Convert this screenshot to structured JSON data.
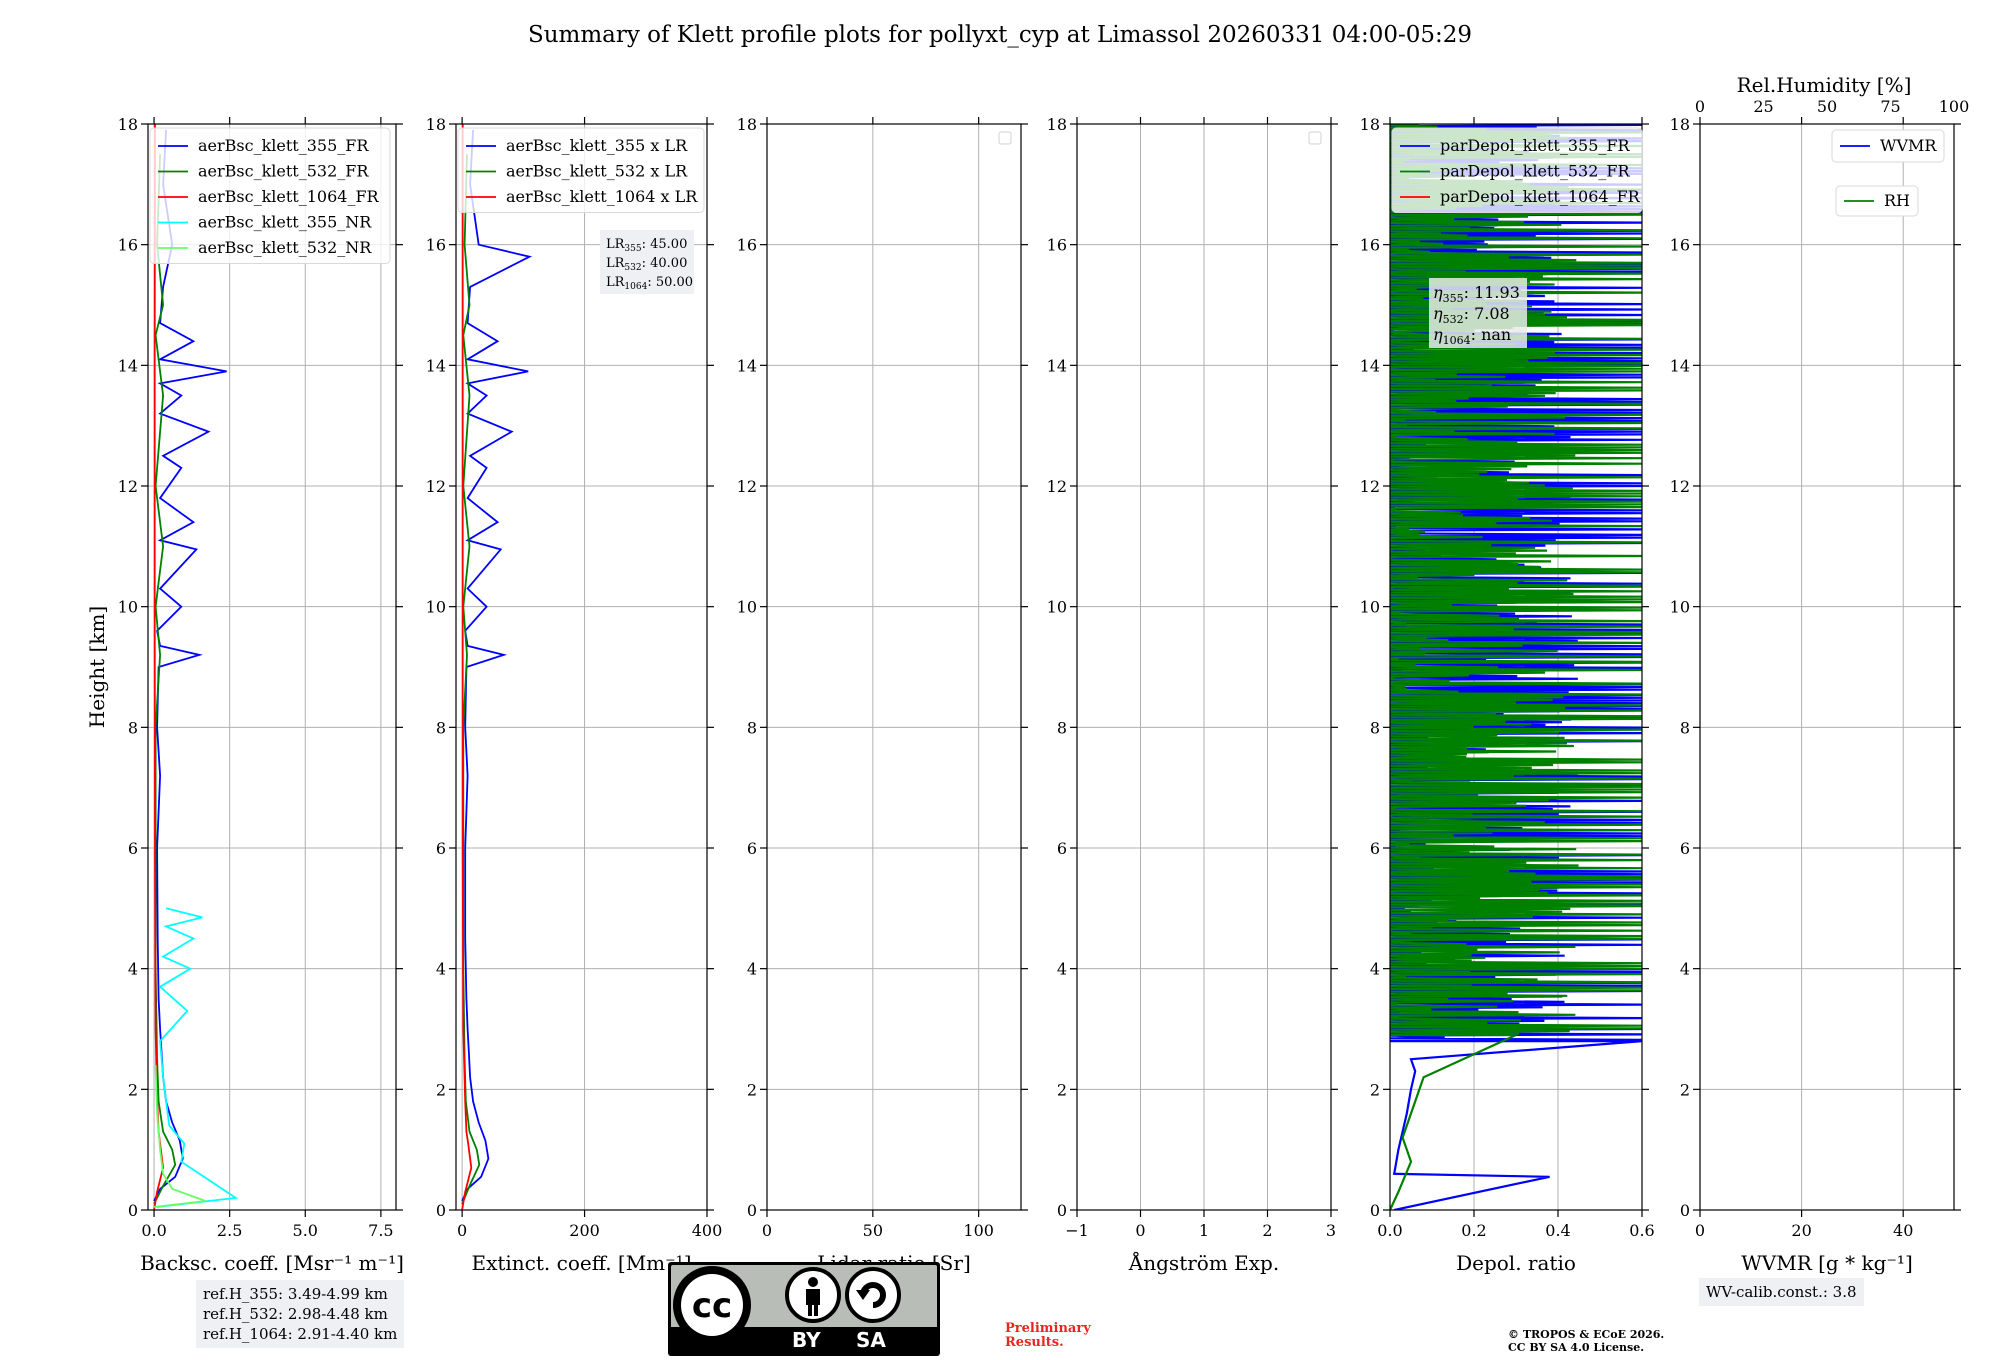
{
  "title": "Summary of Klett profile plots for pollyxt_cyp at Limassol 20260331 04:00-05:29",
  "chart_data": [
    {
      "type": "line",
      "panel": "backscatter",
      "xlabel": "Backsc. coeff. [Msr⁻¹ m⁻¹]",
      "ylabel": "Height [km]",
      "xlim": [
        -0.2,
        8.0
      ],
      "ylim": [
        0,
        18
      ],
      "xticks": [
        "0.0",
        "2.5",
        "5.0",
        "7.5"
      ],
      "xtick_values": [
        0,
        2.5,
        5,
        7.5
      ],
      "yticks": [
        "0",
        "2",
        "4",
        "6",
        "8",
        "10",
        "12",
        "14",
        "16",
        "18"
      ],
      "grid": true,
      "legend_position": "top-left",
      "series": [
        {
          "name": "aerBsc_klett_355_FR",
          "color": "#0000ff",
          "values": [
            [
              0.0,
              0.15
            ],
            [
              0.2,
              0.35
            ],
            [
              0.7,
              0.55
            ],
            [
              0.95,
              0.85
            ],
            [
              0.85,
              1.15
            ],
            [
              0.6,
              1.45
            ],
            [
              0.4,
              1.8
            ],
            [
              0.3,
              2.2
            ],
            [
              0.25,
              2.6
            ],
            [
              0.2,
              3.0
            ],
            [
              0.15,
              3.5
            ],
            [
              0.12,
              4.5
            ],
            [
              0.1,
              6
            ],
            [
              0.2,
              7.2
            ],
            [
              0.1,
              8
            ],
            [
              0.15,
              9.0
            ],
            [
              1.5,
              9.2
            ],
            [
              0.2,
              9.35
            ],
            [
              0.1,
              9.6
            ],
            [
              0.9,
              10.0
            ],
            [
              0.2,
              10.3
            ],
            [
              1.4,
              10.95
            ],
            [
              0.2,
              11.1
            ],
            [
              1.3,
              11.4
            ],
            [
              0.2,
              11.8
            ],
            [
              0.9,
              12.3
            ],
            [
              0.3,
              12.5
            ],
            [
              1.8,
              12.9
            ],
            [
              0.2,
              13.2
            ],
            [
              0.9,
              13.5
            ],
            [
              0.2,
              13.7
            ],
            [
              2.4,
              13.9
            ],
            [
              0.2,
              14.1
            ],
            [
              1.3,
              14.4
            ],
            [
              0.2,
              14.7
            ],
            [
              0.3,
              15.3
            ],
            [
              0.6,
              16.0
            ],
            [
              0.3,
              17
            ],
            [
              0.4,
              17.9
            ]
          ]
        },
        {
          "name": "aerBsc_klett_532_FR",
          "color": "#008000",
          "values": [
            [
              0.0,
              0.1
            ],
            [
              0.3,
              0.4
            ],
            [
              0.7,
              0.75
            ],
            [
              0.6,
              1.0
            ],
            [
              0.3,
              1.3
            ],
            [
              0.15,
              1.8
            ],
            [
              0.1,
              2.5
            ],
            [
              0.05,
              4
            ],
            [
              0.05,
              6
            ],
            [
              0.05,
              8
            ],
            [
              0.2,
              9.2
            ],
            [
              0.05,
              10
            ],
            [
              0.3,
              11
            ],
            [
              0.05,
              12
            ],
            [
              0.3,
              13.5
            ],
            [
              0.05,
              14.5
            ],
            [
              0.3,
              15.0
            ],
            [
              0.1,
              16
            ],
            [
              0.2,
              17.5
            ]
          ]
        },
        {
          "name": "aerBsc_klett_1064_FR",
          "color": "#ff0000",
          "values": [
            [
              0.0,
              0.0
            ],
            [
              0.1,
              0.3
            ],
            [
              0.3,
              0.7
            ],
            [
              0.2,
              1.1
            ],
            [
              0.15,
              1.3
            ],
            [
              0.1,
              1.8
            ],
            [
              0.05,
              3
            ],
            [
              0.03,
              6
            ],
            [
              0.02,
              10
            ],
            [
              0.02,
              14
            ],
            [
              0.03,
              18
            ]
          ]
        },
        {
          "name": "aerBsc_klett_355_NR",
          "color": "#00ffff",
          "values": [
            [
              0.1,
              0.05
            ],
            [
              2.7,
              0.2
            ],
            [
              1.8,
              0.5
            ],
            [
              0.9,
              0.8
            ],
            [
              1.0,
              1.1
            ],
            [
              0.5,
              1.4
            ],
            [
              0.4,
              1.8
            ],
            [
              0.3,
              2.2
            ],
            [
              0.2,
              2.8
            ],
            [
              1.1,
              3.3
            ],
            [
              0.2,
              3.7
            ],
            [
              1.2,
              4.0
            ],
            [
              0.3,
              4.2
            ],
            [
              1.3,
              4.5
            ],
            [
              0.4,
              4.7
            ],
            [
              1.6,
              4.85
            ],
            [
              0.4,
              5.0
            ]
          ]
        },
        {
          "name": "aerBsc_klett_532_NR",
          "color": "#66ff66",
          "values": [
            [
              0.0,
              0.05
            ],
            [
              1.7,
              0.15
            ],
            [
              0.6,
              0.35
            ],
            [
              0.3,
              0.6
            ],
            [
              0.2,
              1.0
            ],
            [
              0.1,
              1.6
            ],
            [
              0.05,
              2.4
            ]
          ]
        }
      ]
    },
    {
      "type": "line",
      "panel": "extinction",
      "xlabel": "Extinct. coeff. [Mm⁻¹]",
      "xlim": [
        -10,
        400
      ],
      "ylim": [
        0,
        18
      ],
      "xticks": [
        "0",
        "200",
        "400"
      ],
      "xtick_values": [
        0,
        200,
        400
      ],
      "yticks": [
        "0",
        "2",
        "4",
        "6",
        "8",
        "10",
        "12",
        "14",
        "16",
        "18"
      ],
      "grid": true,
      "legend_position": "top-left",
      "lidar_ratios": [
        "LR355: 45.00",
        "LR532: 40.00",
        "LR1064: 50.00"
      ],
      "series": [
        {
          "name": "aerBsc_klett_355 x LR",
          "color": "#0000ff",
          "values": [
            [
              0,
              0.15
            ],
            [
              9,
              0.35
            ],
            [
              31,
              0.55
            ],
            [
              43,
              0.85
            ],
            [
              38,
              1.15
            ],
            [
              27,
              1.45
            ],
            [
              18,
              1.8
            ],
            [
              13,
              2.2
            ],
            [
              11,
              2.6
            ],
            [
              9,
              3.0
            ],
            [
              7,
              3.5
            ],
            [
              5,
              4.5
            ],
            [
              5,
              6
            ],
            [
              9,
              7.2
            ],
            [
              5,
              8
            ],
            [
              7,
              9.0
            ],
            [
              68,
              9.2
            ],
            [
              9,
              9.35
            ],
            [
              5,
              9.6
            ],
            [
              40,
              10.0
            ],
            [
              9,
              10.3
            ],
            [
              63,
              10.95
            ],
            [
              9,
              11.1
            ],
            [
              58,
              11.4
            ],
            [
              9,
              11.8
            ],
            [
              40,
              12.3
            ],
            [
              13,
              12.5
            ],
            [
              81,
              12.9
            ],
            [
              9,
              13.2
            ],
            [
              40,
              13.5
            ],
            [
              9,
              13.7
            ],
            [
              108,
              13.9
            ],
            [
              9,
              14.1
            ],
            [
              58,
              14.4
            ],
            [
              9,
              14.7
            ],
            [
              13,
              15.3
            ],
            [
              110,
              15.8
            ],
            [
              27,
              16.0
            ],
            [
              13,
              17
            ],
            [
              18,
              17.9
            ]
          ]
        },
        {
          "name": "aerBsc_klett_532 x LR",
          "color": "#008000",
          "values": [
            [
              0,
              0.1
            ],
            [
              12,
              0.4
            ],
            [
              28,
              0.75
            ],
            [
              24,
              1.0
            ],
            [
              12,
              1.3
            ],
            [
              6,
              1.8
            ],
            [
              4,
              2.5
            ],
            [
              2,
              4
            ],
            [
              2,
              6
            ],
            [
              2,
              8
            ],
            [
              8,
              9.2
            ],
            [
              2,
              10
            ],
            [
              12,
              11
            ],
            [
              2,
              12
            ],
            [
              12,
              13.5
            ],
            [
              2,
              14.5
            ],
            [
              12,
              15.0
            ],
            [
              4,
              16
            ],
            [
              8,
              17.5
            ]
          ]
        },
        {
          "name": "aerBsc_klett_1064 x LR",
          "color": "#ff0000",
          "values": [
            [
              0,
              0.0
            ],
            [
              5,
              0.3
            ],
            [
              15,
              0.7
            ],
            [
              10,
              1.1
            ],
            [
              7,
              1.3
            ],
            [
              5,
              1.8
            ],
            [
              2,
              3
            ],
            [
              1,
              6
            ],
            [
              1,
              10
            ],
            [
              1,
              14
            ],
            [
              1,
              18
            ]
          ]
        }
      ]
    },
    {
      "type": "line",
      "panel": "lidar-ratio",
      "xlabel": "Lidar ratio [Sr]",
      "xlim": [
        0,
        120
      ],
      "ylim": [
        0,
        18
      ],
      "xticks": [
        "0",
        "50",
        "100"
      ],
      "xtick_values": [
        0,
        50,
        100
      ],
      "yticks": [
        "0",
        "2",
        "4",
        "6",
        "8",
        "10",
        "12",
        "14",
        "16",
        "18"
      ],
      "grid": true,
      "series": []
    },
    {
      "type": "line",
      "panel": "angstrom",
      "xlabel": "Ångström Exp.",
      "xlim": [
        -1,
        3
      ],
      "ylim": [
        0,
        18
      ],
      "xticks": [
        "−1",
        "0",
        "1",
        "2",
        "3"
      ],
      "xtick_values": [
        -1,
        0,
        1,
        2,
        3
      ],
      "yticks": [
        "0",
        "2",
        "4",
        "6",
        "8",
        "10",
        "12",
        "14",
        "16",
        "18"
      ],
      "grid": true,
      "series": []
    },
    {
      "type": "line",
      "panel": "depol",
      "xlabel": "Depol. ratio",
      "xlim": [
        0,
        0.6
      ],
      "ylim": [
        0,
        18
      ],
      "xticks": [
        "0.0",
        "0.2",
        "0.4",
        "0.6"
      ],
      "xtick_values": [
        0,
        0.2,
        0.4,
        0.6
      ],
      "yticks": [
        "0",
        "2",
        "4",
        "6",
        "8",
        "10",
        "12",
        "14",
        "16",
        "18"
      ],
      "grid": true,
      "legend_position": "top-left",
      "eta_labels": [
        "η355: 11.93",
        "η532: 7.08",
        "η1064: nan"
      ],
      "series": [
        {
          "name": "parDepol_klett_355_FR",
          "color": "#0000ff",
          "values": [
            [
              0.01,
              0.0
            ],
            [
              0.38,
              0.55
            ],
            [
              0.01,
              0.6
            ],
            [
              0.02,
              1.0
            ],
            [
              0.04,
              1.6
            ],
            [
              0.05,
              2.0
            ],
            [
              0.06,
              2.3
            ],
            [
              0.05,
              2.5
            ],
            [
              0.6,
              2.8
            ],
            "noise 2.8-18 up to 0.6"
          ]
        },
        {
          "name": "parDepol_klett_532_FR",
          "color": "#008000",
          "values": [
            [
              0.0,
              0.0
            ],
            [
              0.02,
              0.3
            ],
            [
              0.05,
              0.8
            ],
            [
              0.03,
              1.2
            ],
            [
              0.06,
              1.8
            ],
            [
              0.08,
              2.2
            ],
            [
              0.3,
              2.9
            ],
            "noise 3-18 up to 0.6"
          ]
        },
        {
          "name": "parDepol_klett_1064_FR",
          "color": "#ff0000",
          "values": []
        }
      ]
    },
    {
      "type": "line",
      "panel": "wv",
      "xlabel": "WVMR [g * kg⁻¹]",
      "top_xlabel": "Rel.Humidity [%]",
      "xlim": [
        0,
        50
      ],
      "top_xlim": [
        0,
        100
      ],
      "ylim": [
        0,
        18
      ],
      "xticks": [
        "0",
        "20",
        "40"
      ],
      "xtick_values": [
        0,
        20,
        40
      ],
      "top_xticks": [
        "0",
        "25",
        "50",
        "75",
        "100"
      ],
      "top_xtick_values": [
        0,
        25,
        50,
        75,
        100
      ],
      "yticks": [
        "0",
        "2",
        "4",
        "6",
        "8",
        "10",
        "12",
        "14",
        "16",
        "18"
      ],
      "grid": true,
      "legend_position": "top-right",
      "series": [
        {
          "name": "WVMR",
          "color": "#0000ff",
          "values": []
        },
        {
          "name": "RH",
          "color": "#008000",
          "values": []
        }
      ]
    }
  ],
  "ref_heights": [
    "ref.H_355: 3.49-4.99 km",
    "ref.H_532: 2.98-4.48 km",
    "ref.H_1064: 2.91-4.40 km"
  ],
  "wv_calib": "WV-calib.const.: 3.8",
  "license_badge": {
    "by": "BY",
    "sa": "SA",
    "cc": "cc"
  },
  "preliminary": [
    "Preliminary",
    "Results."
  ],
  "copyright": [
    "© TROPOS & ECoE 2026.",
    "CC BY SA 4.0 License."
  ]
}
